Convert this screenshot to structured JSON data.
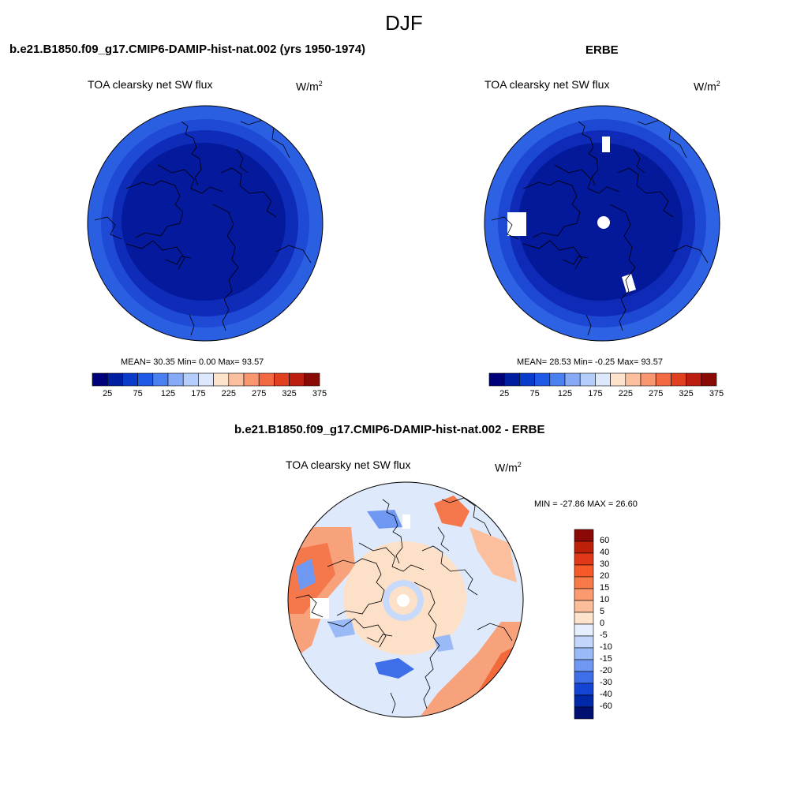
{
  "main_title": "DJF",
  "panels": [
    {
      "title": "b.e21.B1850.f09_g17.CMIP6-DAMIP-hist-nat.002 (yrs 1950-1974)",
      "variable": "TOA clearsky net SW flux",
      "units_base": "W/m",
      "units_exp": "2",
      "stats": "MEAN=  30.35  Min=   0.00  Max=  93.57"
    },
    {
      "title": "ERBE",
      "variable": "TOA clearsky net SW flux",
      "units_base": "W/m",
      "units_exp": "2",
      "stats": "MEAN=  28.53  Min=  -0.25  Max=  93.57"
    },
    {
      "title": "b.e21.B1850.f09_g17.CMIP6-DAMIP-hist-nat.002 - ERBE",
      "variable": "TOA clearsky net SW flux",
      "units_base": "W/m",
      "units_exp": "2",
      "stats": "MIN = -27.86 MAX =  26.60"
    }
  ],
  "chart_data": [
    {
      "type": "heatmap",
      "projection": "north polar stereographic",
      "title": "b.e21.B1850.f09_g17.CMIP6-DAMIP-hist-nat.002 (yrs 1950-1974)",
      "variable": "TOA clearsky net SW flux",
      "units": "W/m2",
      "mean": 30.35,
      "min": 0.0,
      "max": 93.57,
      "colorbar_ticks": [
        "25",
        "75",
        "125",
        "175",
        "225",
        "275",
        "325",
        "375"
      ],
      "colorbar_colors": [
        "#00007a",
        "#001ea0",
        "#0a3ccc",
        "#1e5ae6",
        "#4a80f0",
        "#86aaf6",
        "#b4cdfa",
        "#dde8fd",
        "#fde3cc",
        "#fbbf9d",
        "#f89670",
        "#f26a42",
        "#e0401e",
        "#bc1e10",
        "#8a0a05"
      ]
    },
    {
      "type": "heatmap",
      "projection": "north polar stereographic",
      "title": "ERBE",
      "variable": "TOA clearsky net SW flux",
      "units": "W/m2",
      "mean": 28.53,
      "min": -0.25,
      "max": 93.57,
      "colorbar_ticks": [
        "25",
        "75",
        "125",
        "175",
        "225",
        "275",
        "325",
        "375"
      ],
      "colorbar_colors": [
        "#00007a",
        "#001ea0",
        "#0a3ccc",
        "#1e5ae6",
        "#4a80f0",
        "#86aaf6",
        "#b4cdfa",
        "#dde8fd",
        "#fde3cc",
        "#fbbf9d",
        "#f89670",
        "#f26a42",
        "#e0401e",
        "#bc1e10",
        "#8a0a05"
      ]
    },
    {
      "type": "heatmap",
      "projection": "north polar stereographic",
      "title": "b.e21.B1850.f09_g17.CMIP6-DAMIP-hist-nat.002 - ERBE",
      "variable": "TOA clearsky net SW flux",
      "units": "W/m2",
      "min": -27.86,
      "max": 26.6,
      "colorbar_ticks": [
        "60",
        "40",
        "30",
        "20",
        "15",
        "10",
        "5",
        "0",
        "-5",
        "-10",
        "-15",
        "-20",
        "-30",
        "-40",
        "-60"
      ],
      "colorbar_colors": [
        "#8a0a05",
        "#bc2008",
        "#e03818",
        "#f55a28",
        "#f87a48",
        "#fa9a6e",
        "#fcbd9a",
        "#fde3cc",
        "#e6effd",
        "#c2d6fb",
        "#9ab9f7",
        "#6e98f2",
        "#3e6fe8",
        "#1444d4",
        "#0028a8",
        "#001070"
      ]
    }
  ]
}
